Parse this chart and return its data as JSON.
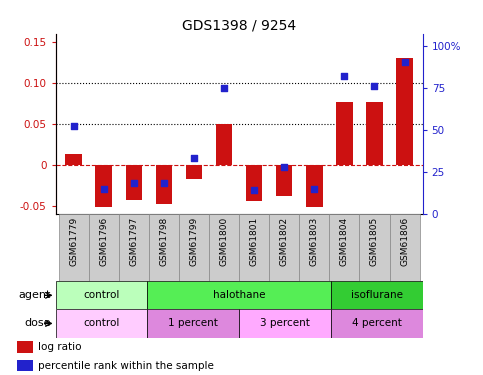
{
  "title": "GDS1398 / 9254",
  "samples": [
    "GSM61779",
    "GSM61796",
    "GSM61797",
    "GSM61798",
    "GSM61799",
    "GSM61800",
    "GSM61801",
    "GSM61802",
    "GSM61803",
    "GSM61804",
    "GSM61805",
    "GSM61806"
  ],
  "log_ratio": [
    0.013,
    -0.052,
    -0.043,
    -0.048,
    -0.018,
    0.05,
    -0.045,
    -0.038,
    -0.052,
    0.077,
    0.077,
    0.13
  ],
  "pct_rank": [
    52,
    15,
    18,
    18,
    33,
    75,
    14,
    28,
    15,
    82,
    76,
    90
  ],
  "bar_color": "#cc1111",
  "dot_color": "#2222cc",
  "ylim_left": [
    -0.06,
    0.16
  ],
  "ylim_right": [
    0,
    107
  ],
  "yticks_left": [
    -0.05,
    0.0,
    0.05,
    0.1,
    0.15
  ],
  "ytick_labels_left": [
    "-0.05",
    "0",
    "0.05",
    "0.10",
    "0.15"
  ],
  "yticks_right": [
    0,
    25,
    50,
    75,
    100
  ],
  "ytick_labels_right": [
    "0",
    "25",
    "50",
    "75",
    "100%"
  ],
  "hlines": [
    0.05,
    0.1
  ],
  "agent_groups": [
    {
      "label": "control",
      "start": 0,
      "end": 3,
      "color": "#bbffbb"
    },
    {
      "label": "halothane",
      "start": 3,
      "end": 9,
      "color": "#55ee55"
    },
    {
      "label": "isoflurane",
      "start": 9,
      "end": 12,
      "color": "#33cc33"
    }
  ],
  "dose_groups": [
    {
      "label": "control",
      "start": 0,
      "end": 3,
      "color": "#ffccff"
    },
    {
      "label": "1 percent",
      "start": 3,
      "end": 6,
      "color": "#dd88dd"
    },
    {
      "label": "3 percent",
      "start": 6,
      "end": 9,
      "color": "#ffaaff"
    },
    {
      "label": "4 percent",
      "start": 9,
      "end": 12,
      "color": "#dd88dd"
    }
  ],
  "legend_items": [
    {
      "label": "log ratio",
      "color": "#cc1111"
    },
    {
      "label": "percentile rank within the sample",
      "color": "#2222cc"
    }
  ],
  "agent_label": "agent",
  "dose_label": "dose",
  "bar_width": 0.55,
  "background_color": "#ffffff",
  "zero_line_color": "#cc1111",
  "zero_line_style": "--",
  "label_bg_color": "#cccccc",
  "label_border_color": "#888888"
}
